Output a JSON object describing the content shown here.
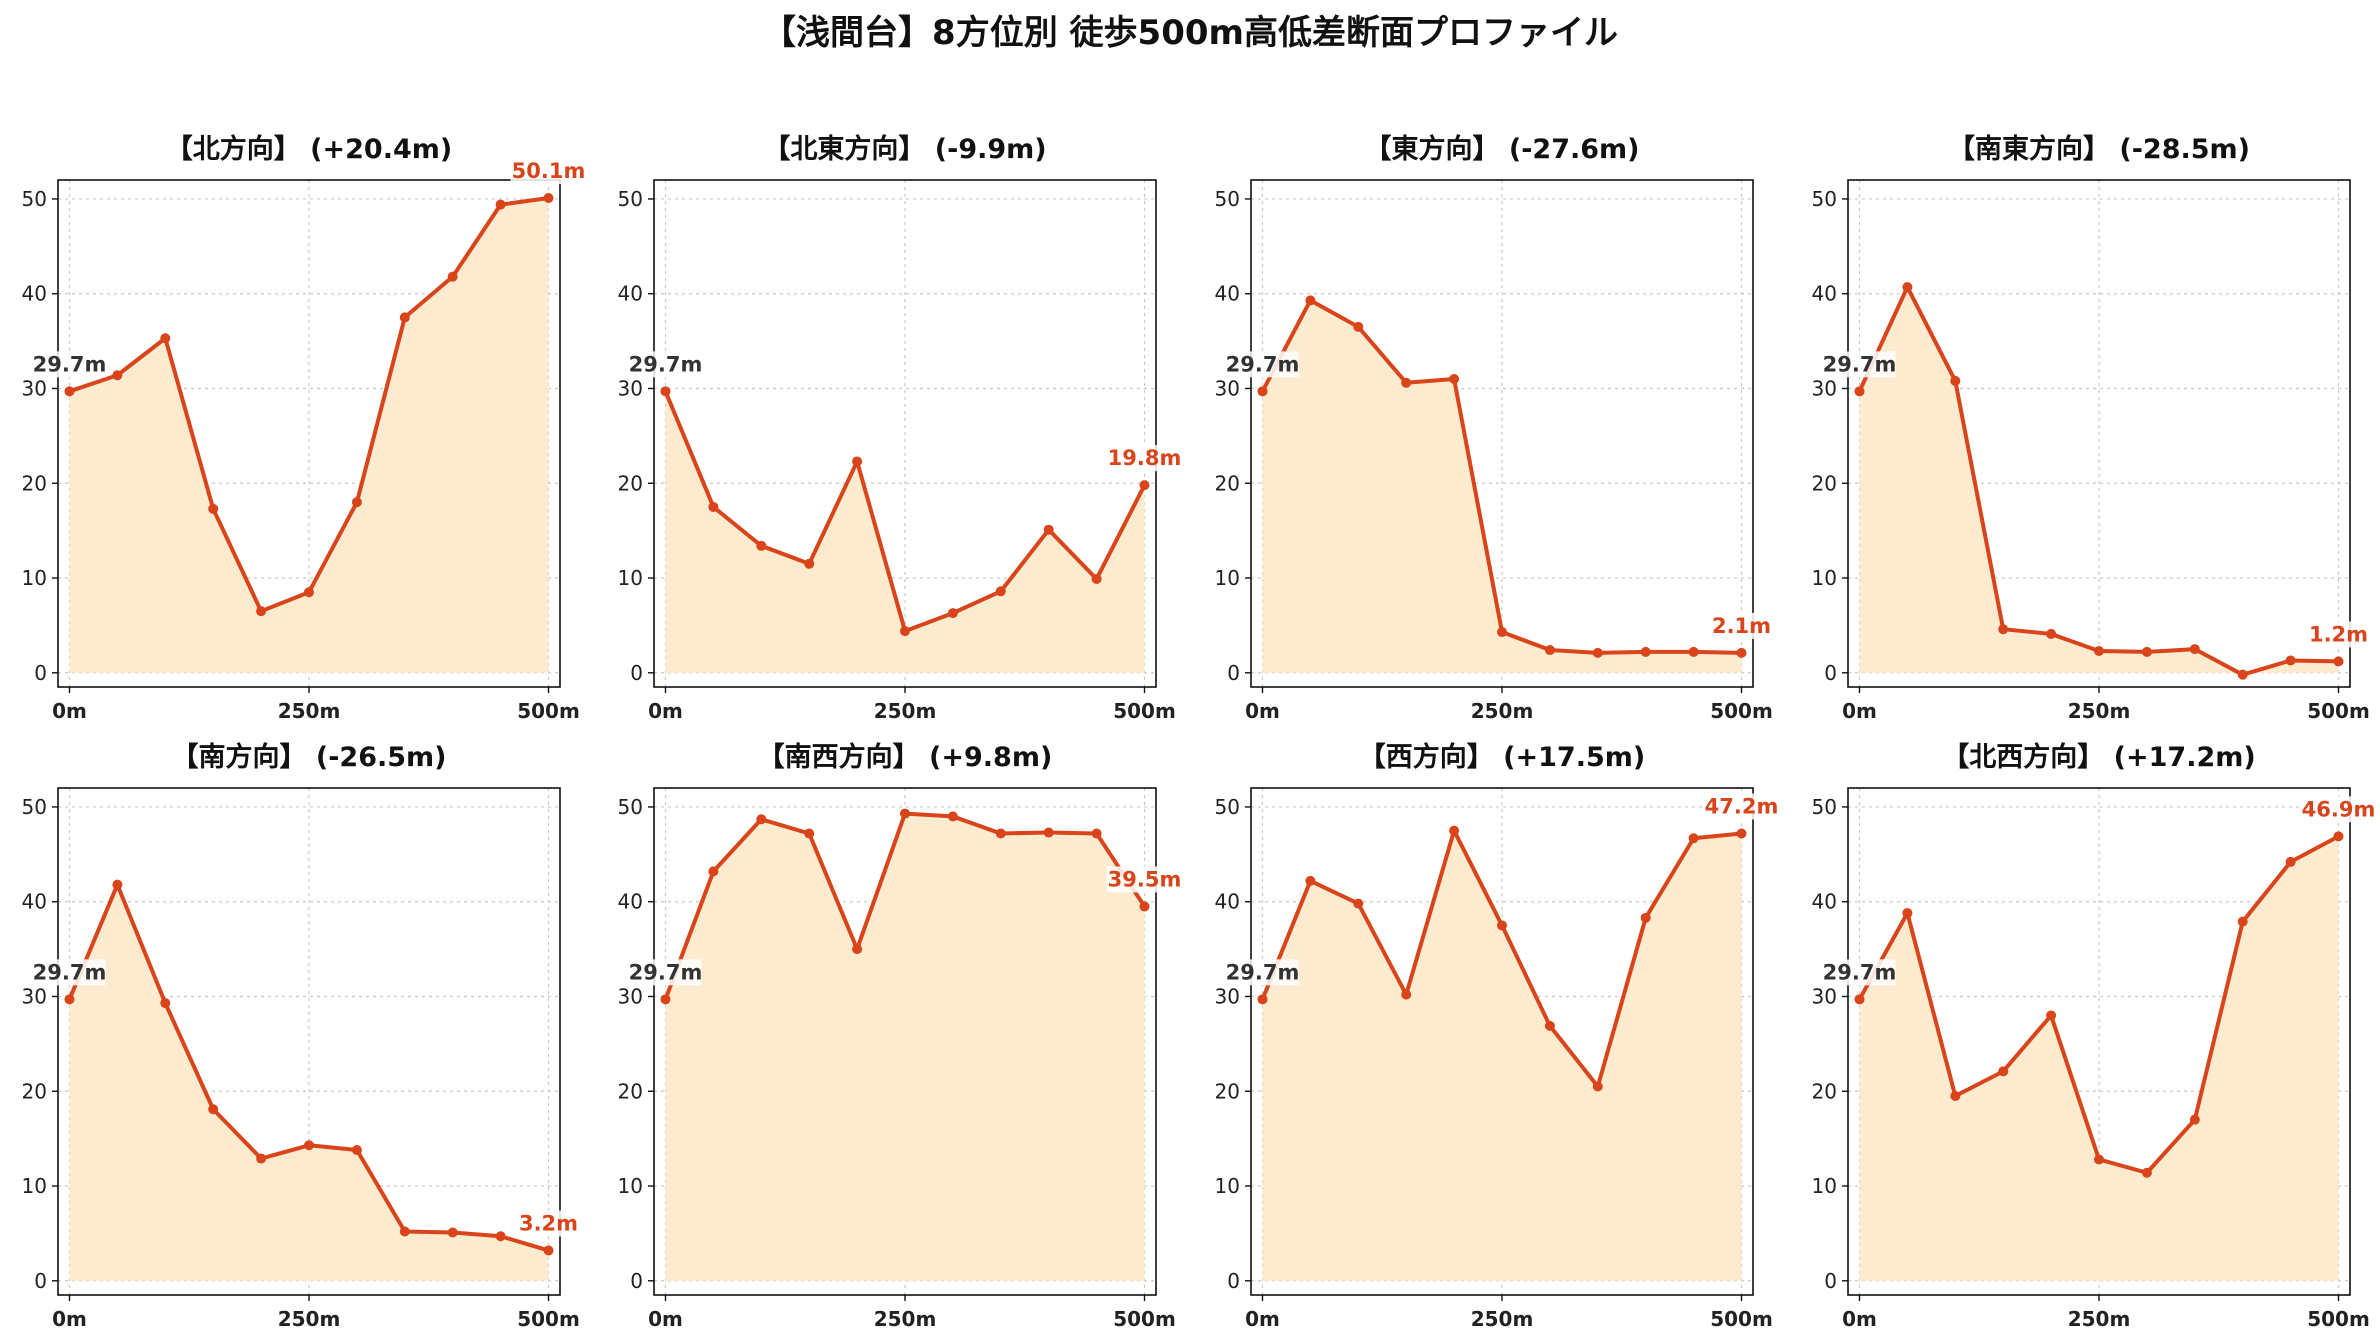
{
  "title": "【浅間台】8方位別 徒歩500m高低差断面プロファイル",
  "colors": {
    "line": "#d9441a",
    "fill": "#fdebd0",
    "start_label": "#333333",
    "end_label": "#d9441a"
  },
  "chart_data": [
    {
      "type": "area",
      "title": "【北方向】 (+20.4m)",
      "x": [
        0,
        50,
        100,
        150,
        200,
        250,
        300,
        350,
        400,
        450,
        500
      ],
      "values": [
        29.7,
        31.4,
        35.3,
        17.3,
        6.5,
        8.5,
        18.0,
        37.5,
        41.8,
        49.4,
        50.1
      ],
      "start_label": "29.7m",
      "end_label": "50.1m",
      "xticks": [
        "0m",
        "250m",
        "500m"
      ],
      "yticks": [
        "0",
        "10",
        "20",
        "30",
        "40",
        "50"
      ],
      "ylim": [
        -1.5,
        52
      ],
      "xlim": [
        -12,
        512
      ],
      "grid": true
    },
    {
      "type": "area",
      "title": "【北東方向】 (-9.9m)",
      "x": [
        0,
        50,
        100,
        150,
        200,
        250,
        300,
        350,
        400,
        450,
        500
      ],
      "values": [
        29.7,
        17.5,
        13.4,
        11.5,
        22.3,
        4.4,
        6.3,
        8.6,
        15.1,
        9.9,
        19.8
      ],
      "start_label": "29.7m",
      "end_label": "19.8m",
      "xticks": [
        "0m",
        "250m",
        "500m"
      ],
      "yticks": [
        "0",
        "10",
        "20",
        "30",
        "40",
        "50"
      ],
      "ylim": [
        -1.5,
        52
      ],
      "xlim": [
        -12,
        512
      ],
      "grid": true
    },
    {
      "type": "area",
      "title": "【東方向】 (-27.6m)",
      "x": [
        0,
        50,
        100,
        150,
        200,
        250,
        300,
        350,
        400,
        450,
        500
      ],
      "values": [
        29.7,
        39.3,
        36.5,
        30.6,
        31.0,
        4.3,
        2.4,
        2.1,
        2.2,
        2.2,
        2.1
      ],
      "start_label": "29.7m",
      "end_label": "2.1m",
      "xticks": [
        "0m",
        "250m",
        "500m"
      ],
      "yticks": [
        "0",
        "10",
        "20",
        "30",
        "40",
        "50"
      ],
      "ylim": [
        -1.5,
        52
      ],
      "xlim": [
        -12,
        512
      ],
      "grid": true
    },
    {
      "type": "area",
      "title": "【南東方向】 (-28.5m)",
      "x": [
        0,
        50,
        100,
        150,
        200,
        250,
        300,
        350,
        400,
        450,
        500
      ],
      "values": [
        29.7,
        40.7,
        30.8,
        4.6,
        4.1,
        2.3,
        2.2,
        2.5,
        -0.2,
        1.3,
        1.2
      ],
      "start_label": "29.7m",
      "end_label": "1.2m",
      "xticks": [
        "0m",
        "250m",
        "500m"
      ],
      "yticks": [
        "0",
        "10",
        "20",
        "30",
        "40",
        "50"
      ],
      "ylim": [
        -1.5,
        52
      ],
      "xlim": [
        -12,
        512
      ],
      "grid": true
    },
    {
      "type": "area",
      "title": "【南方向】 (-26.5m)",
      "x": [
        0,
        50,
        100,
        150,
        200,
        250,
        300,
        350,
        400,
        450,
        500
      ],
      "values": [
        29.7,
        41.8,
        29.3,
        18.1,
        12.9,
        14.3,
        13.8,
        5.2,
        5.1,
        4.7,
        3.2
      ],
      "start_label": "29.7m",
      "end_label": "3.2m",
      "xticks": [
        "0m",
        "250m",
        "500m"
      ],
      "yticks": [
        "0",
        "10",
        "20",
        "30",
        "40",
        "50"
      ],
      "ylim": [
        -1.5,
        52
      ],
      "xlim": [
        -12,
        512
      ],
      "grid": true
    },
    {
      "type": "area",
      "title": "【南西方向】 (+9.8m)",
      "x": [
        0,
        50,
        100,
        150,
        200,
        250,
        300,
        350,
        400,
        450,
        500
      ],
      "values": [
        29.7,
        43.2,
        48.7,
        47.2,
        35.0,
        49.3,
        49.0,
        47.2,
        47.3,
        47.2,
        39.5
      ],
      "start_label": "29.7m",
      "end_label": "39.5m",
      "xticks": [
        "0m",
        "250m",
        "500m"
      ],
      "yticks": [
        "0",
        "10",
        "20",
        "30",
        "40",
        "50"
      ],
      "ylim": [
        -1.5,
        52
      ],
      "xlim": [
        -12,
        512
      ],
      "grid": true
    },
    {
      "type": "area",
      "title": "【西方向】 (+17.5m)",
      "x": [
        0,
        50,
        100,
        150,
        200,
        250,
        300,
        350,
        400,
        450,
        500
      ],
      "values": [
        29.7,
        42.2,
        39.8,
        30.2,
        47.5,
        37.5,
        26.9,
        20.5,
        38.3,
        46.7,
        47.2
      ],
      "start_label": "29.7m",
      "end_label": "47.2m",
      "xticks": [
        "0m",
        "250m",
        "500m"
      ],
      "yticks": [
        "0",
        "10",
        "20",
        "30",
        "40",
        "50"
      ],
      "ylim": [
        -1.5,
        52
      ],
      "xlim": [
        -12,
        512
      ],
      "grid": true
    },
    {
      "type": "area",
      "title": "【北西方向】 (+17.2m)",
      "x": [
        0,
        50,
        100,
        150,
        200,
        250,
        300,
        350,
        400,
        450,
        500
      ],
      "values": [
        29.7,
        38.8,
        19.5,
        22.1,
        28.0,
        12.8,
        11.4,
        17.0,
        37.9,
        44.2,
        46.9
      ],
      "start_label": "29.7m",
      "end_label": "46.9m",
      "xticks": [
        "0m",
        "250m",
        "500m"
      ],
      "yticks": [
        "0",
        "10",
        "20",
        "30",
        "40",
        "50"
      ],
      "ylim": [
        -1.5,
        52
      ],
      "xlim": [
        -12,
        512
      ],
      "grid": true
    }
  ]
}
